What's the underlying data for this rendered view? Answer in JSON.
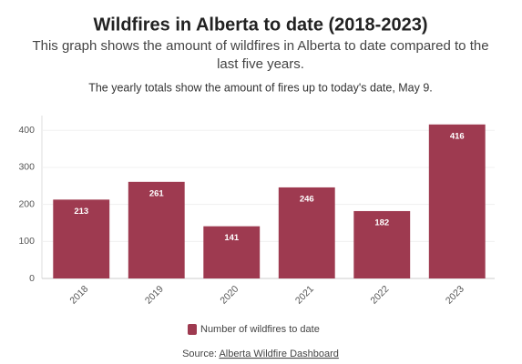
{
  "chart_data": {
    "type": "bar",
    "title": "Wildfires in Alberta to date (2018-2023)",
    "subtitle": [
      "This graph shows the amount of wildfires in Alberta to date compared to the",
      "last five years."
    ],
    "note": "The yearly totals show the amount of fires up to today's date, May 9.",
    "categories": [
      "2018",
      "2019",
      "2020",
      "2021",
      "2022",
      "2023"
    ],
    "series": [
      {
        "name": "Number of wildfires to date",
        "color": "#9e3a50",
        "values": [
          213,
          261,
          141,
          246,
          182,
          416
        ]
      }
    ],
    "ylim": [
      0,
      440
    ],
    "yticks": [
      0,
      100,
      200,
      300,
      400
    ],
    "grid": true,
    "source_label": "Source:",
    "source_link": "Alberta Wildfire Dashboard"
  }
}
